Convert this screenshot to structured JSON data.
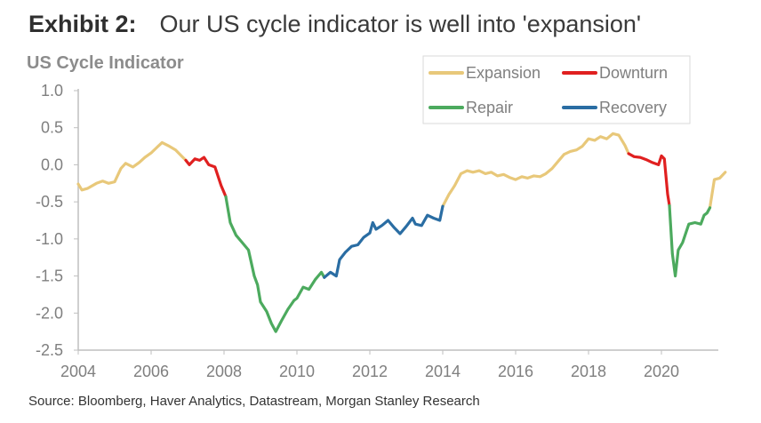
{
  "header": {
    "exhibit_label": "Exhibit 2:",
    "title": "Our US cycle indicator is well into 'expansion'"
  },
  "source": "Source: Bloomberg, Haver Analytics, Datastream, Morgan Stanley Research",
  "chart_data": {
    "type": "line",
    "title": "US Cycle Indicator",
    "ylim": [
      -2.5,
      1.0
    ],
    "xlim": [
      2004,
      2021.75
    ],
    "yticks": [
      1.0,
      0.5,
      0.0,
      -0.5,
      -1.0,
      -1.5,
      -2.0,
      -2.5
    ],
    "ytick_labels": [
      "1.0",
      "0.5",
      "0.0",
      "-0.5",
      "-1.0",
      "-1.5",
      "-2.0",
      "-2.5"
    ],
    "xticks": [
      2004,
      2006,
      2008,
      2010,
      2012,
      2014,
      2016,
      2018,
      2020
    ],
    "xtick_labels": [
      "2004",
      "2006",
      "2008",
      "2010",
      "2012",
      "2014",
      "2016",
      "2018",
      "2020"
    ],
    "grid": false,
    "legend_position": "top-right",
    "series": [
      {
        "name": "Expansion",
        "color": "#e8c87a",
        "segments": [
          [
            [
              2004.0,
              -0.26
            ],
            [
              2004.1,
              -0.34
            ],
            [
              2004.25,
              -0.32
            ],
            [
              2004.5,
              -0.25
            ],
            [
              2004.67,
              -0.22
            ],
            [
              2004.83,
              -0.25
            ],
            [
              2005.0,
              -0.23
            ],
            [
              2005.17,
              -0.05
            ],
            [
              2005.3,
              0.02
            ],
            [
              2005.5,
              -0.03
            ],
            [
              2005.67,
              0.03
            ],
            [
              2005.83,
              0.1
            ],
            [
              2006.0,
              0.16
            ],
            [
              2006.17,
              0.24
            ],
            [
              2006.3,
              0.3
            ],
            [
              2006.5,
              0.25
            ],
            [
              2006.67,
              0.2
            ],
            [
              2006.83,
              0.12
            ],
            [
              2006.95,
              0.06
            ]
          ],
          [
            [
              2014.0,
              -0.56
            ],
            [
              2014.17,
              -0.4
            ],
            [
              2014.33,
              -0.28
            ],
            [
              2014.5,
              -0.12
            ],
            [
              2014.67,
              -0.08
            ],
            [
              2014.83,
              -0.1
            ],
            [
              2015.0,
              -0.08
            ],
            [
              2015.17,
              -0.12
            ],
            [
              2015.33,
              -0.1
            ],
            [
              2015.5,
              -0.15
            ],
            [
              2015.67,
              -0.13
            ],
            [
              2015.83,
              -0.17
            ],
            [
              2016.0,
              -0.2
            ],
            [
              2016.17,
              -0.16
            ],
            [
              2016.33,
              -0.18
            ],
            [
              2016.5,
              -0.15
            ],
            [
              2016.67,
              -0.16
            ],
            [
              2016.83,
              -0.12
            ],
            [
              2017.0,
              -0.05
            ],
            [
              2017.17,
              0.05
            ],
            [
              2017.33,
              0.14
            ],
            [
              2017.5,
              0.18
            ],
            [
              2017.67,
              0.2
            ],
            [
              2017.83,
              0.25
            ],
            [
              2018.0,
              0.35
            ],
            [
              2018.17,
              0.33
            ],
            [
              2018.33,
              0.38
            ],
            [
              2018.5,
              0.35
            ],
            [
              2018.67,
              0.42
            ],
            [
              2018.83,
              0.4
            ],
            [
              2019.0,
              0.26
            ],
            [
              2019.1,
              0.15
            ]
          ],
          [
            [
              2021.33,
              -0.58
            ],
            [
              2021.45,
              -0.2
            ],
            [
              2021.6,
              -0.18
            ],
            [
              2021.75,
              -0.1
            ]
          ]
        ]
      },
      {
        "name": "Downturn",
        "color": "#e02020",
        "segments": [
          [
            [
              2006.95,
              0.06
            ],
            [
              2007.05,
              0.0
            ],
            [
              2007.2,
              0.08
            ],
            [
              2007.33,
              0.06
            ],
            [
              2007.45,
              0.1
            ],
            [
              2007.58,
              0.0
            ],
            [
              2007.75,
              -0.03
            ],
            [
              2007.92,
              -0.28
            ],
            [
              2008.05,
              -0.43
            ]
          ],
          [
            [
              2019.1,
              0.15
            ],
            [
              2019.25,
              0.11
            ],
            [
              2019.42,
              0.1
            ],
            [
              2019.58,
              0.07
            ],
            [
              2019.75,
              0.03
            ],
            [
              2019.92,
              0.0
            ],
            [
              2020.0,
              0.12
            ],
            [
              2020.08,
              0.08
            ],
            [
              2020.17,
              -0.4
            ],
            [
              2020.22,
              -0.55
            ]
          ]
        ]
      },
      {
        "name": "Repair",
        "color": "#4caa5e",
        "segments": [
          [
            [
              2008.05,
              -0.43
            ],
            [
              2008.17,
              -0.78
            ],
            [
              2008.33,
              -0.95
            ],
            [
              2008.5,
              -1.05
            ],
            [
              2008.67,
              -1.15
            ],
            [
              2008.83,
              -1.5
            ],
            [
              2008.92,
              -1.62
            ],
            [
              2009.0,
              -1.85
            ],
            [
              2009.17,
              -1.98
            ],
            [
              2009.3,
              -2.14
            ],
            [
              2009.42,
              -2.25
            ],
            [
              2009.58,
              -2.1
            ],
            [
              2009.75,
              -1.95
            ],
            [
              2009.92,
              -1.83
            ],
            [
              2010.0,
              -1.8
            ],
            [
              2010.17,
              -1.65
            ],
            [
              2010.33,
              -1.68
            ],
            [
              2010.5,
              -1.55
            ],
            [
              2010.67,
              -1.45
            ],
            [
              2010.75,
              -1.52
            ]
          ],
          [
            [
              2020.22,
              -0.55
            ],
            [
              2020.3,
              -1.2
            ],
            [
              2020.38,
              -1.5
            ],
            [
              2020.46,
              -1.15
            ],
            [
              2020.58,
              -1.05
            ],
            [
              2020.75,
              -0.8
            ],
            [
              2020.92,
              -0.78
            ],
            [
              2021.08,
              -0.8
            ],
            [
              2021.17,
              -0.68
            ],
            [
              2021.25,
              -0.65
            ],
            [
              2021.33,
              -0.58
            ]
          ]
        ]
      },
      {
        "name": "Recovery",
        "color": "#2a6da3",
        "segments": [
          [
            [
              2010.75,
              -1.52
            ],
            [
              2010.92,
              -1.45
            ],
            [
              2011.08,
              -1.5
            ],
            [
              2011.17,
              -1.28
            ],
            [
              2011.33,
              -1.18
            ],
            [
              2011.5,
              -1.1
            ],
            [
              2011.67,
              -1.08
            ],
            [
              2011.83,
              -0.98
            ],
            [
              2012.0,
              -0.92
            ],
            [
              2012.08,
              -0.78
            ],
            [
              2012.17,
              -0.87
            ],
            [
              2012.33,
              -0.82
            ],
            [
              2012.5,
              -0.75
            ],
            [
              2012.67,
              -0.85
            ],
            [
              2012.83,
              -0.93
            ],
            [
              2013.0,
              -0.83
            ],
            [
              2013.17,
              -0.72
            ],
            [
              2013.25,
              -0.8
            ],
            [
              2013.42,
              -0.82
            ],
            [
              2013.58,
              -0.68
            ],
            [
              2013.75,
              -0.72
            ],
            [
              2013.92,
              -0.75
            ],
            [
              2014.0,
              -0.56
            ]
          ]
        ]
      }
    ]
  }
}
